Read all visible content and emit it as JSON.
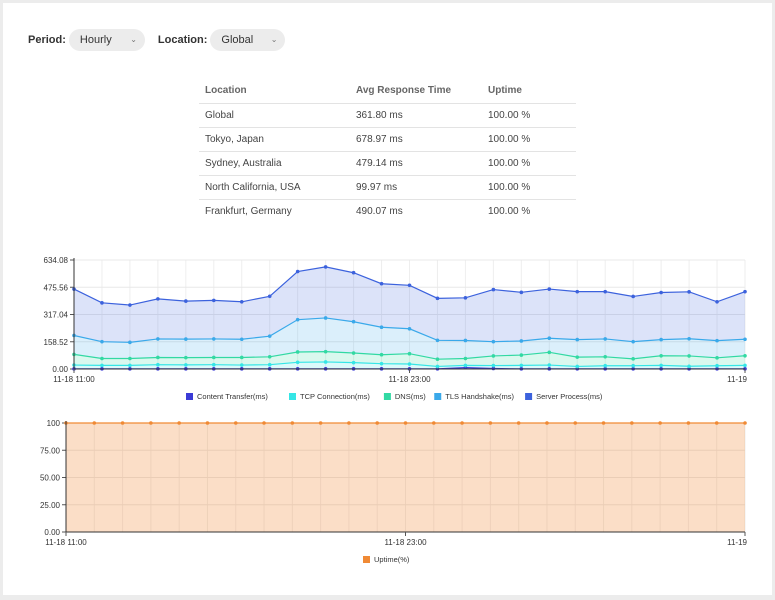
{
  "filters": {
    "period_label": "Period:",
    "period_value": "Hourly",
    "location_label": "Location:",
    "location_value": "Global"
  },
  "table": {
    "headers": [
      "Location",
      "Avg Response Time",
      "Uptime"
    ],
    "rows": [
      [
        "Global",
        "361.80 ms",
        "100.00 %"
      ],
      [
        "Tokyo, Japan",
        "678.97 ms",
        "100.00 %"
      ],
      [
        "Sydney, Australia",
        "479.14 ms",
        "100.00 %"
      ],
      [
        "North California, USA",
        "99.97 ms",
        "100.00 %"
      ],
      [
        "Frankfurt, Germany",
        "490.07 ms",
        "100.00 %"
      ]
    ]
  },
  "chart_data": [
    {
      "type": "area",
      "stacked": true,
      "x_ticks": [
        "11-18 11:00",
        "11-18 23:00",
        "11-19"
      ],
      "y_ticks": [
        "0.00",
        "158.52",
        "317.04",
        "475.56",
        "634.08"
      ],
      "ylim": [
        0,
        634.08
      ],
      "points": 25,
      "series": [
        {
          "name": "Content Transfer(ms)",
          "color": "#3b3bd6",
          "values": [
            1,
            1,
            1,
            1,
            1,
            1,
            1,
            1,
            1,
            1,
            1,
            1,
            1,
            1,
            8,
            3,
            1,
            1,
            1,
            1,
            1,
            1,
            1,
            1,
            1
          ]
        },
        {
          "name": "TCP Connection(ms)",
          "color": "#35e6e6",
          "values": [
            22,
            20,
            20,
            24,
            23,
            24,
            22,
            24,
            38,
            40,
            36,
            30,
            28,
            14,
            13,
            17,
            20,
            22,
            14,
            18,
            18,
            20,
            15,
            18,
            20
          ]
        },
        {
          "name": "DNS(ms)",
          "color": "#32d9a3",
          "values": [
            62,
            40,
            40,
            42,
            42,
            42,
            44,
            46,
            60,
            60,
            56,
            52,
            60,
            42,
            40,
            56,
            60,
            74,
            54,
            52,
            40,
            56,
            60,
            46,
            56
          ]
        },
        {
          "name": "TLS Handshake(ms)",
          "color": "#3aa9ea",
          "values": [
            110,
            98,
            94,
            108,
            108,
            108,
            106,
            120,
            188,
            196,
            182,
            160,
            145,
            110,
            105,
            83,
            82,
            82,
            102,
            104,
            100,
            94,
            100,
            100,
            96
          ]
        },
        {
          "name": "Server Process(ms)",
          "color": "#3c62dd",
          "values": [
            270,
            226,
            217,
            233,
            221,
            224,
            218,
            232,
            280,
            297,
            285,
            253,
            253,
            244,
            248,
            303,
            283,
            286,
            279,
            275,
            263,
            274,
            273,
            226,
            277
          ]
        }
      ],
      "totals": [
        465,
        385,
        372,
        408,
        395,
        399,
        391,
        423,
        567,
        594,
        560,
        496,
        487,
        411,
        414,
        462,
        446,
        465,
        450,
        450,
        422,
        445,
        449,
        391,
        450
      ],
      "legend_position": "bottom"
    },
    {
      "type": "area",
      "x_ticks": [
        "11-18 11:00",
        "11-18 23:00",
        "11-19"
      ],
      "y_ticks": [
        "0.00",
        "25.00",
        "50.00",
        "75.00",
        "100"
      ],
      "ylim": [
        0,
        100
      ],
      "points": 25,
      "series": [
        {
          "name": "Uptime(%)",
          "color": "#f08a35",
          "values": [
            100,
            100,
            100,
            100,
            100,
            100,
            100,
            100,
            100,
            100,
            100,
            100,
            100,
            100,
            100,
            100,
            100,
            100,
            100,
            100,
            100,
            100,
            100,
            100,
            100
          ]
        }
      ],
      "legend_position": "bottom"
    }
  ]
}
